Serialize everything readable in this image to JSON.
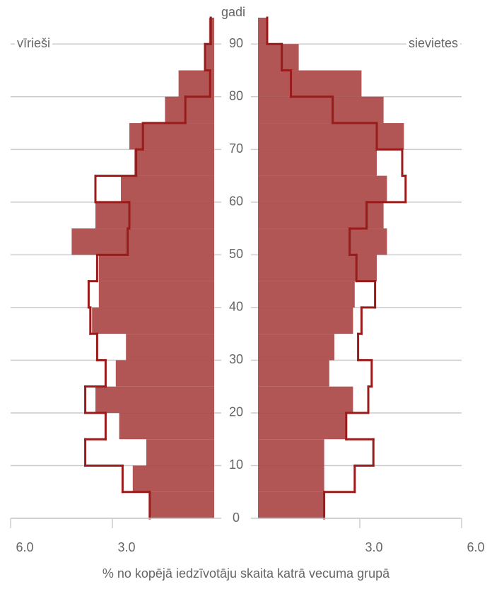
{
  "chart_data": {
    "type": "pyramid",
    "y_label": "gadi",
    "x_label": "% no kopējā iedzīvotāju skaita katrā vecuma grupā",
    "age_bins": [
      0,
      5,
      10,
      15,
      20,
      25,
      30,
      35,
      40,
      45,
      50,
      55,
      60,
      65,
      70,
      75,
      80,
      85,
      90,
      95
    ],
    "ylim": [
      0,
      95
    ],
    "yticks": [
      0,
      10,
      20,
      30,
      40,
      50,
      60,
      70,
      80,
      90
    ],
    "xlim": [
      0,
      6
    ],
    "xticks": [
      {
        "value": 3,
        "label": "3.0"
      },
      {
        "value": 6,
        "label": "6.0"
      }
    ],
    "grid": true,
    "fill_color": "#a63d3d",
    "outline_color": "#9b1b1b",
    "series": [
      {
        "name": "vīrieši",
        "side": "left",
        "values": [
          1.9,
          2.4,
          2.0,
          2.8,
          3.5,
          2.9,
          2.6,
          3.6,
          3.4,
          3.4,
          4.2,
          3.5,
          2.75,
          2.35,
          2.5,
          1.45,
          1.05,
          0.3,
          0.15
        ],
        "outline_values": [
          1.9,
          2.7,
          3.8,
          3.2,
          3.8,
          3.2,
          3.45,
          3.65,
          3.7,
          3.45,
          2.55,
          2.5,
          3.5,
          2.3,
          2.1,
          0.85,
          0.12,
          0.27,
          0.1
        ]
      },
      {
        "name": "sievietes",
        "side": "right",
        "values": [
          1.95,
          1.95,
          1.95,
          2.6,
          2.8,
          2.1,
          2.25,
          2.8,
          2.85,
          3.5,
          3.8,
          3.7,
          3.8,
          3.5,
          4.3,
          3.7,
          3.05,
          1.2,
          0.27
        ],
        "outline_values": [
          1.95,
          2.85,
          3.4,
          2.6,
          3.25,
          3.35,
          2.95,
          3.05,
          3.45,
          2.9,
          2.7,
          3.2,
          4.35,
          4.25,
          3.5,
          2.2,
          0.97,
          0.7,
          0.27
        ]
      }
    ]
  }
}
